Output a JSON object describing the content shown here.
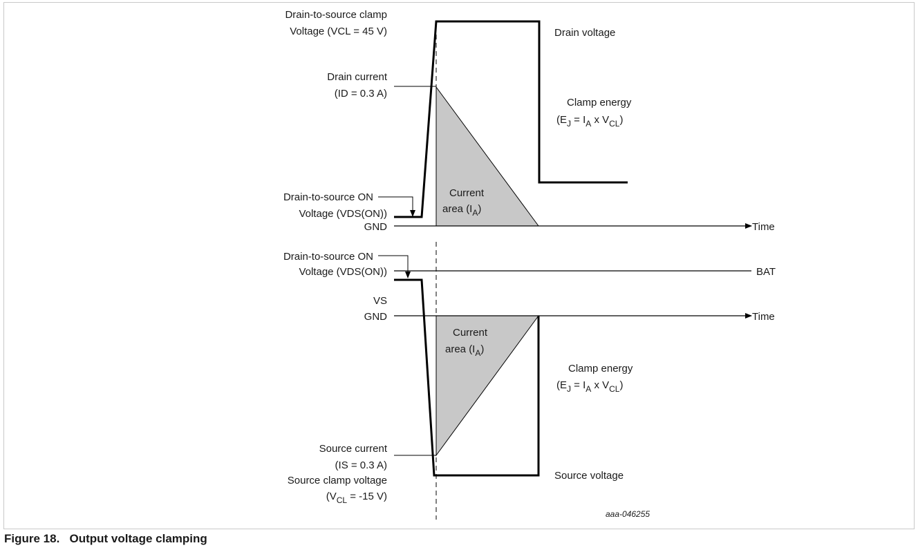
{
  "top": {
    "clamp_label_1": "Drain-to-source clamp",
    "clamp_label_2": "Voltage (VCL = 45 V)",
    "drain_voltage": "Drain voltage",
    "drain_current_1": "Drain current",
    "drain_current_2": "(ID = 0.3 A)",
    "clamp_energy_1": "Clamp energy",
    "clamp_energy_2_prefix": "(E",
    "clamp_energy_2_sub1": "J",
    "clamp_energy_2_mid": " = I",
    "clamp_energy_2_sub2": "A",
    "clamp_energy_2_mid2": " x V",
    "clamp_energy_2_sub3": "CL",
    "clamp_energy_2_end": ")",
    "current_area_1": "Current",
    "current_area_2_prefix": "area (I",
    "current_area_2_sub": "A",
    "current_area_2_end": ")",
    "vds_on_1": "Drain-to-source ON",
    "vds_on_2": "Voltage (VDS(ON))",
    "gnd": "GND",
    "time": "Time"
  },
  "bottom": {
    "vds_on_1": "Drain-to-source ON",
    "vds_on_2": "Voltage (VDS(ON))",
    "bat": "BAT",
    "vs": "VS",
    "gnd": "GND",
    "time": "Time",
    "current_area_1": "Current",
    "current_area_2_prefix": "area (I",
    "current_area_2_sub": "A",
    "current_area_2_end": ")",
    "clamp_energy_1": "Clamp energy",
    "clamp_energy_2_prefix": "(E",
    "clamp_energy_2_sub1": "J",
    "clamp_energy_2_mid": " = I",
    "clamp_energy_2_sub2": "A",
    "clamp_energy_2_mid2": " x V",
    "clamp_energy_2_sub3": "CL",
    "clamp_energy_2_end": ")",
    "source_current_1": "Source current",
    "source_current_2": "(IS = 0.3 A)",
    "source_clamp_1": "Source clamp voltage",
    "source_clamp_2_prefix": "(V",
    "source_clamp_2_sub": "CL",
    "source_clamp_2_end": " = -15 V)",
    "source_voltage": "Source voltage"
  },
  "figure_code": "aaa-046255",
  "caption": {
    "number": "Figure 18.",
    "title": "Output voltage clamping"
  },
  "colors": {
    "line": "#000000",
    "fill": "#c8c8c8",
    "frame": "#c8c8c8"
  }
}
